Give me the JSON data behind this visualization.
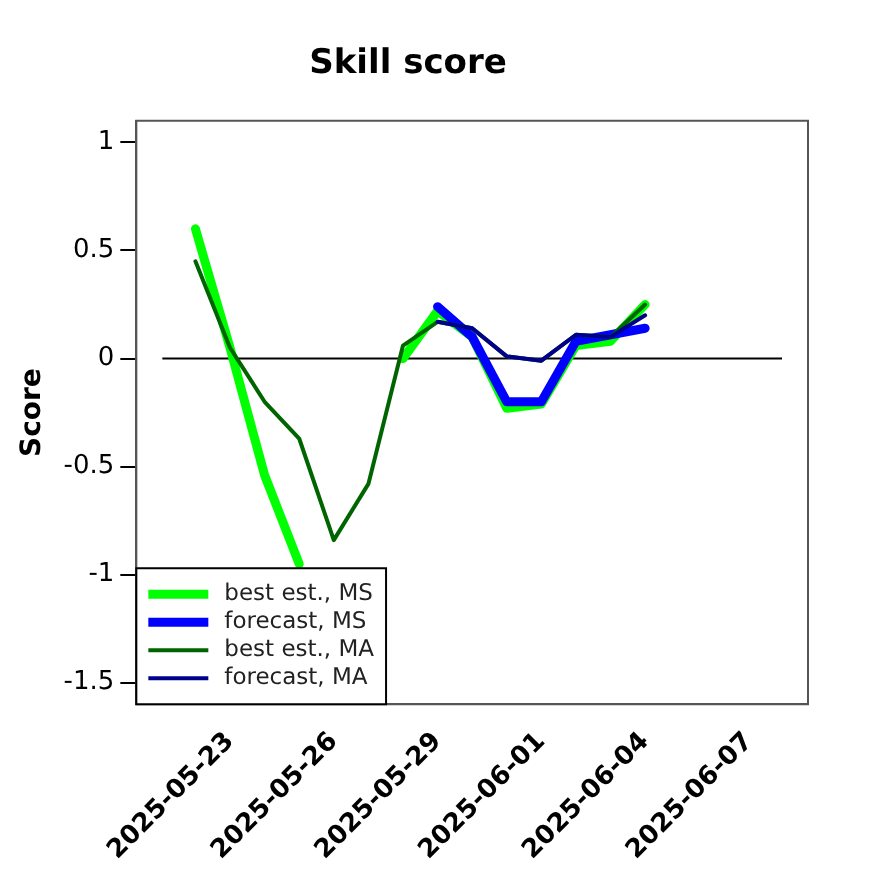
{
  "chart_data": {
    "type": "line",
    "title": "Skill score",
    "ylabel": "Score",
    "x": [
      "2025-05-22",
      "2025-05-23",
      "2025-05-24",
      "2025-05-25",
      "2025-05-26",
      "2025-05-27",
      "2025-05-28",
      "2025-05-29",
      "2025-05-30",
      "2025-05-31",
      "2025-06-01",
      "2025-06-02",
      "2025-06-03",
      "2025-06-04"
    ],
    "series": [
      {
        "name": "best est., MS",
        "color": "#00ff00",
        "values": [
          0.6,
          0.05,
          -0.54,
          -0.95,
          null,
          null,
          0.0,
          0.22,
          0.1,
          -0.23,
          -0.21,
          0.06,
          0.08,
          0.25
        ]
      },
      {
        "name": "forecast, MS",
        "color": "#0000ff",
        "values": [
          null,
          null,
          null,
          null,
          null,
          null,
          null,
          0.24,
          0.1,
          -0.2,
          -0.2,
          0.08,
          0.11,
          0.14
        ]
      },
      {
        "name": "best est., MA",
        "color": "#006400",
        "values": [
          0.45,
          0.05,
          -0.2,
          -0.37,
          -0.84,
          -0.58,
          0.06,
          0.17,
          0.14,
          0.01,
          -0.01,
          0.11,
          0.1,
          0.25
        ]
      },
      {
        "name": "forecast, MA",
        "color": "#00008b",
        "values": [
          null,
          null,
          null,
          null,
          null,
          null,
          null,
          0.17,
          0.14,
          0.01,
          -0.01,
          0.11,
          0.1,
          0.2
        ]
      }
    ],
    "xlim": [
      "2025-05-20T07:00",
      "2025-06-08T17:00"
    ],
    "xticks": [
      "2025-05-23",
      "2025-05-26",
      "2025-05-29",
      "2025-06-01",
      "2025-06-04",
      "2025-06-07"
    ],
    "ylim": [
      -1.6,
      1.1
    ],
    "yticks": [
      -1.5,
      -1,
      -0.5,
      0,
      0.5,
      1
    ],
    "ref_lines": [
      {
        "axis": "y",
        "value": 0,
        "color": "#000000"
      }
    ],
    "legend": "bottom left",
    "grid": false,
    "marker": "none",
    "line_style": "solid"
  }
}
